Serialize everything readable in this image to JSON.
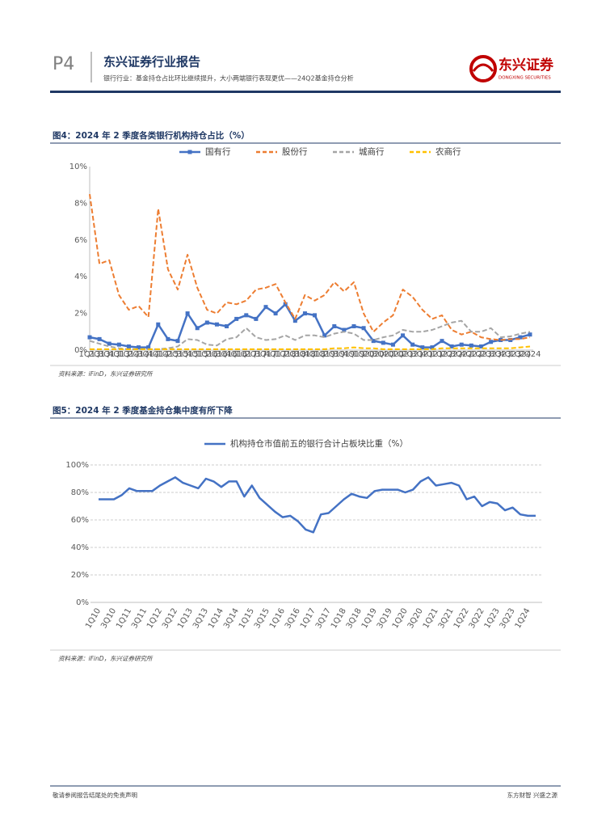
{
  "header": {
    "page": "P4",
    "report_type": "东兴证券行业报告",
    "subtitle": "银行行业：基金持仓占比环比继续提升，大小两端银行表现更优——24Q2基金持仓分析",
    "logo_cn": "东兴证券",
    "logo_en": "DONGXING SECURITIES"
  },
  "figures": [
    {
      "title": "图4：2024 年 2 季度各类银行机构持仓占比（%）",
      "source": "资料来源：iFinD，东兴证券研究所"
    },
    {
      "title": "图5：2024 年 2 季度基金持仓集中度有所下降",
      "source": "资料来源：iFinD，东兴证券研究所"
    }
  ],
  "footer": {
    "left": "敬请参阅报告结尾处的免责声明",
    "right": "东方财智  兴盛之源"
  },
  "chart_data": [
    {
      "type": "line",
      "categories": [
        "1Q13",
        "2Q13",
        "3Q13",
        "4Q13",
        "1Q14",
        "2Q14",
        "3Q14",
        "4Q14",
        "1Q15",
        "2Q15",
        "3Q15",
        "4Q15",
        "1Q16",
        "2Q16",
        "3Q16",
        "4Q16",
        "1Q17",
        "2Q17",
        "3Q17",
        "4Q17",
        "1Q18",
        "2Q18",
        "3Q18",
        "4Q18",
        "1Q19",
        "2Q19",
        "3Q19",
        "4Q19",
        "1Q20",
        "2Q20",
        "3Q20",
        "4Q20",
        "1Q21",
        "2Q21",
        "3Q21",
        "4Q21",
        "1Q22",
        "2Q22",
        "3Q22",
        "4Q22",
        "1Q23",
        "2Q23",
        "3Q23",
        "4Q23",
        "1Q24",
        "2Q24"
      ],
      "series": [
        {
          "name": "国有行",
          "color": "#4472c4",
          "dash": false,
          "marker": "square",
          "values": [
            0.7,
            0.6,
            0.35,
            0.3,
            0.2,
            0.15,
            0.15,
            1.4,
            0.6,
            0.5,
            2.0,
            1.2,
            1.5,
            1.4,
            1.3,
            1.7,
            1.9,
            1.7,
            2.35,
            2.0,
            2.5,
            1.6,
            2.0,
            1.9,
            0.8,
            1.3,
            1.1,
            1.3,
            1.2,
            0.5,
            0.4,
            0.3,
            0.8,
            0.3,
            0.15,
            0.15,
            0.5,
            0.2,
            0.3,
            0.25,
            0.2,
            0.45,
            0.55,
            0.55,
            0.7,
            0.85
          ]
        },
        {
          "name": "股份行",
          "color": "#ed7d31",
          "dash": true,
          "marker": "none",
          "values": [
            8.5,
            4.7,
            4.9,
            3.0,
            2.2,
            2.4,
            1.8,
            7.7,
            4.4,
            3.3,
            5.2,
            3.4,
            2.2,
            2.0,
            2.6,
            2.5,
            2.7,
            3.3,
            3.4,
            3.6,
            2.6,
            1.7,
            3.0,
            2.7,
            3.0,
            3.7,
            3.2,
            3.7,
            2.0,
            1.0,
            1.5,
            1.9,
            3.3,
            2.9,
            2.2,
            1.7,
            1.9,
            1.1,
            0.85,
            1.0,
            0.7,
            0.6,
            0.55,
            0.6,
            0.6,
            0.7
          ]
        },
        {
          "name": "城商行",
          "color": "#a5a5a5",
          "dash": true,
          "marker": "none",
          "values": [
            0.5,
            0.35,
            0.2,
            0.1,
            0.05,
            0.05,
            0.05,
            0.05,
            0.1,
            0.2,
            0.6,
            0.55,
            0.3,
            0.25,
            0.6,
            0.7,
            1.2,
            0.7,
            0.55,
            0.6,
            0.8,
            0.55,
            0.8,
            0.8,
            0.7,
            0.9,
            1.0,
            0.9,
            0.55,
            0.55,
            0.7,
            0.8,
            1.1,
            1.0,
            1.0,
            1.1,
            1.3,
            1.5,
            1.6,
            1.0,
            1.0,
            1.2,
            0.7,
            0.75,
            0.9,
            1.0
          ]
        },
        {
          "name": "农商行",
          "color": "#ffc000",
          "dash": true,
          "marker": "none",
          "values": [
            0.05,
            0.05,
            0.05,
            0.05,
            0.05,
            0.05,
            0.05,
            0.05,
            0.05,
            0.05,
            0.05,
            0.05,
            0.05,
            0.05,
            0.05,
            0.05,
            0.05,
            0.05,
            0.05,
            0.05,
            0.05,
            0.05,
            0.05,
            0.05,
            0.05,
            0.1,
            0.1,
            0.15,
            0.1,
            0.1,
            0.05,
            0.05,
            0.05,
            0.05,
            0.05,
            0.05,
            0.1,
            0.1,
            0.1,
            0.1,
            0.1,
            0.1,
            0.1,
            0.1,
            0.15,
            0.2
          ]
        }
      ],
      "ylim": [
        0,
        10
      ],
      "yticks": [
        {
          "value": 0,
          "label": "0%"
        },
        {
          "value": 2,
          "label": "2%"
        },
        {
          "value": 4,
          "label": "4%"
        },
        {
          "value": 6,
          "label": "6%"
        },
        {
          "value": 8,
          "label": "8%"
        },
        {
          "value": 10,
          "label": "10%"
        }
      ],
      "grid": false,
      "legend": "top"
    },
    {
      "type": "line",
      "categories": [
        "1Q10",
        null,
        "3Q10",
        null,
        "1Q11",
        null,
        "3Q11",
        null,
        "1Q12",
        null,
        "3Q12",
        null,
        "1Q13",
        null,
        "3Q13",
        null,
        "1Q14",
        null,
        "3Q14",
        null,
        "1Q15",
        null,
        "3Q15",
        null,
        "1Q16",
        null,
        "3Q16",
        null,
        "1Q17",
        null,
        "3Q17",
        null,
        "1Q18",
        null,
        "3Q18",
        null,
        "1Q19",
        null,
        "3Q19",
        null,
        "1Q20",
        null,
        "3Q20",
        null,
        "1Q21",
        null,
        "3Q21",
        null,
        "1Q22",
        null,
        "3Q22",
        null,
        "1Q23",
        null,
        "3Q23",
        null,
        "1Q24",
        null
      ],
      "series": [
        {
          "name": "机构持仓市值前五的银行合计占板块比重（%）",
          "color": "#4472c4",
          "dash": false,
          "marker": "none",
          "values": [
            75,
            75,
            75,
            78,
            83,
            81,
            81,
            81,
            85,
            88,
            91,
            87,
            85,
            83,
            90,
            88,
            84,
            88,
            88,
            77,
            85,
            76,
            71,
            66,
            62,
            63,
            59,
            53,
            51,
            64,
            65,
            70,
            75,
            79,
            77,
            76,
            81,
            82,
            82,
            82,
            80,
            82,
            88,
            91,
            85,
            86,
            87,
            85,
            75,
            77,
            70,
            73,
            72,
            67,
            69,
            64,
            63,
            63
          ]
        }
      ],
      "ylim": [
        0,
        100
      ],
      "yticks": [
        {
          "value": 0,
          "label": "0%"
        },
        {
          "value": 20,
          "label": "20%"
        },
        {
          "value": 40,
          "label": "40%"
        },
        {
          "value": 60,
          "label": "60%"
        },
        {
          "value": 80,
          "label": "80%"
        },
        {
          "value": 100,
          "label": "100%"
        }
      ],
      "grid": true,
      "legend": "top"
    }
  ]
}
